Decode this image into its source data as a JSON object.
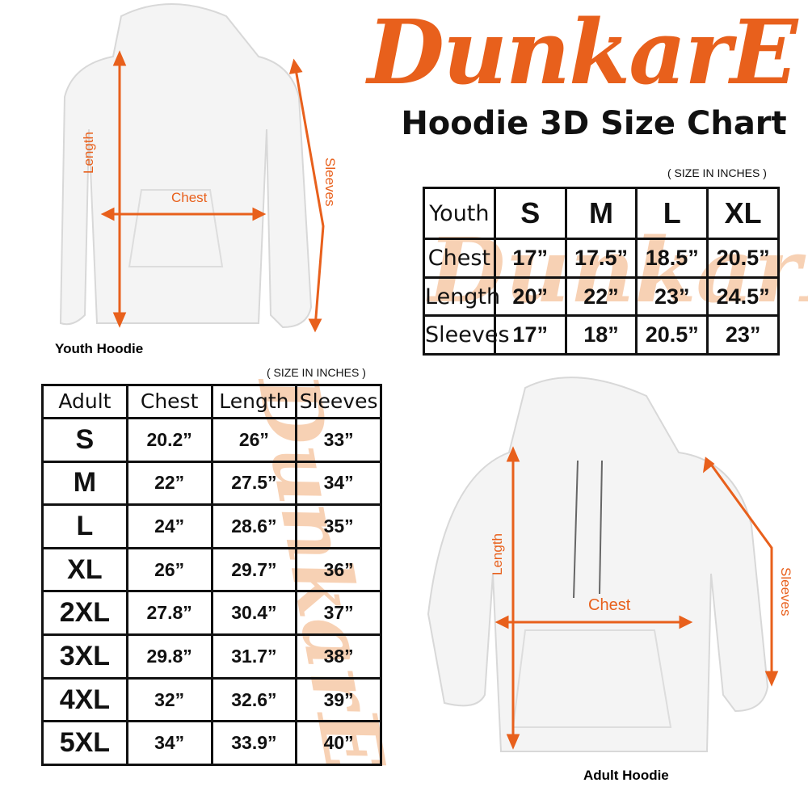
{
  "brand": {
    "logo_text": "DunkarE",
    "color": "#e8601c"
  },
  "title": "Hoodie 3D Size Chart",
  "youth": {
    "caption": "Youth Hoodie",
    "note": "( SIZE IN INCHES )",
    "measure_labels": {
      "length": "Length",
      "chest": "Chest",
      "sleeves": "Sleeves"
    },
    "header": [
      "Youth",
      "S",
      "M",
      "L",
      "XL"
    ],
    "rows": [
      [
        "Chest",
        "17”",
        "17.5”",
        "18.5”",
        "20.5”"
      ],
      [
        "Length",
        "20”",
        "22”",
        "23”",
        "24.5”"
      ],
      [
        "Sleeves",
        "17”",
        "18”",
        "20.5”",
        "23”"
      ]
    ]
  },
  "adult": {
    "caption": "Adult Hoodie",
    "note": "( SIZE IN INCHES )",
    "measure_labels": {
      "length": "Length",
      "chest": "Chest",
      "sleeves": "Sleeves"
    },
    "header": [
      "Adult",
      "Chest",
      "Length",
      "Sleeves"
    ],
    "rows": [
      [
        "S",
        "20.2”",
        "26”",
        "33”"
      ],
      [
        "M",
        "22”",
        "27.5”",
        "34”"
      ],
      [
        "L",
        "24”",
        "28.6”",
        "35”"
      ],
      [
        "XL",
        "26”",
        "29.7”",
        "36”"
      ],
      [
        "2XL",
        "27.8”",
        "30.4”",
        "37”"
      ],
      [
        "3XL",
        "29.8”",
        "31.7”",
        "38”"
      ],
      [
        "4XL",
        "32”",
        "32.6”",
        "39”"
      ],
      [
        "5XL",
        "34”",
        "33.9”",
        "40”"
      ]
    ]
  }
}
